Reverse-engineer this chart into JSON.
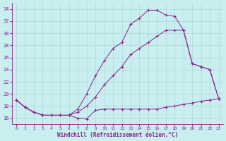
{
  "background_color": "#c8eef0",
  "grid_color": "#b0d8d8",
  "line_color": "#882288",
  "xlabel": "Windchill (Refroidissement éolien,°C)",
  "ylim": [
    15.0,
    35.0
  ],
  "xlim": [
    -0.5,
    23.5
  ],
  "yticks": [
    16,
    18,
    20,
    22,
    24,
    26,
    28,
    30,
    32,
    34
  ],
  "xticks": [
    0,
    1,
    2,
    3,
    4,
    5,
    6,
    7,
    8,
    9,
    10,
    11,
    12,
    13,
    14,
    15,
    16,
    17,
    18,
    19,
    20,
    21,
    22,
    23
  ],
  "line1_x": [
    0,
    1,
    2,
    3,
    4,
    5,
    6,
    7,
    8,
    9,
    10,
    11,
    12,
    13,
    14,
    15,
    16,
    17,
    18,
    19,
    20,
    21,
    22,
    23
  ],
  "line1_y": [
    19.0,
    17.8,
    17.0,
    16.5,
    16.5,
    16.5,
    16.5,
    16.0,
    15.9,
    17.3,
    17.5,
    17.5,
    17.5,
    17.5,
    17.5,
    17.5,
    17.5,
    17.8,
    18.0,
    18.3,
    18.5,
    18.8,
    19.0,
    19.2
  ],
  "line2_x": [
    0,
    1,
    2,
    3,
    4,
    5,
    6,
    7,
    8,
    9,
    10,
    11,
    12,
    13,
    14,
    15,
    16,
    17,
    18,
    19,
    20,
    21,
    22,
    23
  ],
  "line2_y": [
    19.0,
    17.8,
    17.0,
    16.5,
    16.5,
    16.5,
    16.5,
    17.0,
    18.0,
    19.5,
    21.5,
    23.0,
    24.5,
    26.5,
    27.5,
    28.5,
    29.5,
    30.5,
    30.5,
    30.5,
    25.0,
    24.5,
    24.0,
    19.2
  ],
  "line3_x": [
    0,
    1,
    2,
    3,
    4,
    5,
    6,
    7,
    8,
    9,
    10,
    11,
    12,
    13,
    14,
    15,
    16,
    17,
    18,
    19,
    20,
    21,
    22,
    23
  ],
  "line3_y": [
    19.0,
    17.8,
    17.0,
    16.5,
    16.5,
    16.5,
    16.5,
    17.5,
    20.0,
    23.0,
    25.5,
    27.5,
    28.5,
    31.5,
    32.5,
    33.8,
    33.8,
    33.0,
    32.8,
    30.5,
    25.0,
    24.5,
    24.0,
    19.2
  ]
}
